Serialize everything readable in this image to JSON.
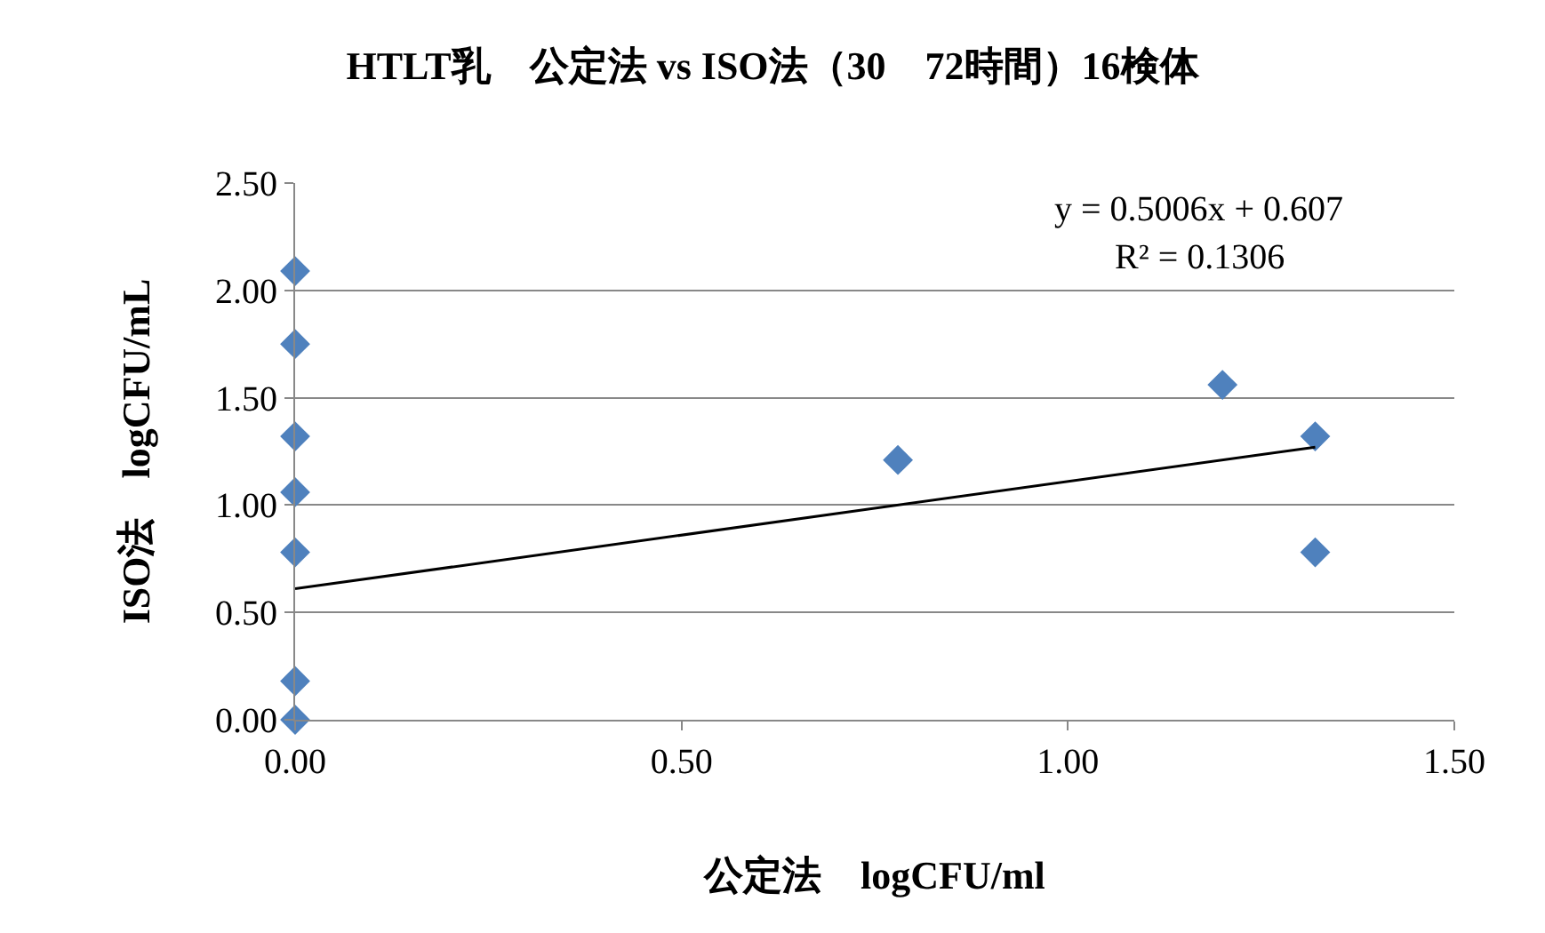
{
  "chart_data": {
    "type": "scatter",
    "title": "HTLT乳　公定法 vs ISO法（30　72時間）16検体",
    "xlabel": "公定法　logCFU/ml",
    "ylabel": "ISO法　logCFU/mL",
    "xlim": [
      0,
      1.5
    ],
    "xticks": [
      {
        "value": 0,
        "label": "0.00"
      },
      {
        "value": 0.5,
        "label": "0.50"
      },
      {
        "value": 1,
        "label": "1.00"
      },
      {
        "value": 1.5,
        "label": "1.50"
      }
    ],
    "ylim": [
      0,
      2.5
    ],
    "yticks": [
      {
        "value": 0,
        "label": "0.00"
      },
      {
        "value": 0.5,
        "label": "0.50"
      },
      {
        "value": 1,
        "label": "1.00"
      },
      {
        "value": 1.5,
        "label": "1.50"
      },
      {
        "value": 2,
        "label": "2.00"
      },
      {
        "value": 2.5,
        "label": "2.50"
      }
    ],
    "grid": "y",
    "marker": "diamond",
    "series": [
      {
        "color": "#4f81bd",
        "x": [
          0,
          0,
          0,
          0,
          0,
          0,
          0,
          0.78,
          1.2,
          1.32,
          1.32
        ],
        "values": [
          2.09,
          1.75,
          1.32,
          1.06,
          0.78,
          0.18,
          0,
          1.21,
          1.56,
          1.32,
          0.78
        ]
      },
      {
        "type": "line",
        "marker": "none",
        "color": "#000000",
        "x": [
          0,
          1.32
        ],
        "values": [
          0.61,
          1.27
        ]
      }
    ],
    "annotations": [
      "y = 0.5006x + 0.607",
      "R² = 0.1306"
    ]
  }
}
